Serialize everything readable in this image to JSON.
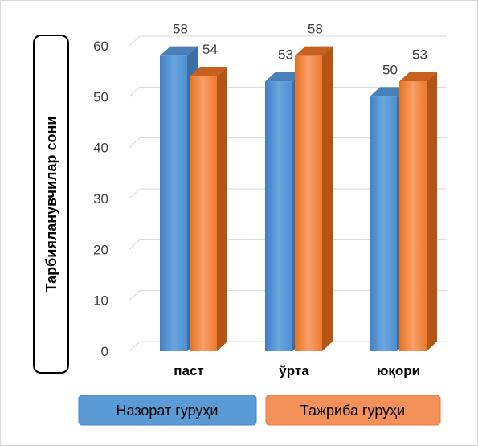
{
  "chart_data": {
    "type": "bar",
    "categories": [
      "паст",
      "ўрта",
      "юқори"
    ],
    "series": [
      {
        "name": "Назорат гуруҳи",
        "values": [
          58,
          53,
          50
        ],
        "color": "#5b9bd5"
      },
      {
        "name": "Тажриба гуруҳи",
        "values": [
          54,
          58,
          53
        ],
        "color": "#ed7d31"
      }
    ],
    "ylabel": "Тарбияланувчилар сони",
    "ylim": [
      0,
      60
    ],
    "yticks": [
      0,
      10,
      20,
      30,
      40,
      50,
      60
    ],
    "grid": true,
    "legend_position": "bottom",
    "style": "3d-column"
  }
}
